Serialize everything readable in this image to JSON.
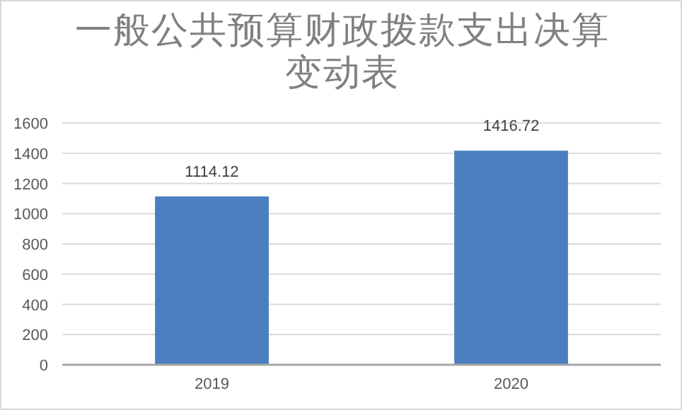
{
  "chart_data": {
    "type": "bar",
    "title": "一般公共预算财政拨款支出决算变动表",
    "categories": [
      "2019",
      "2020"
    ],
    "values": [
      1114.12,
      1416.72
    ],
    "color": "#4a7ebf",
    "ylim": [
      0,
      1600
    ],
    "yticks": [
      0,
      200,
      400,
      600,
      800,
      1000,
      1200,
      1400,
      1600
    ],
    "grid": "y",
    "data_labels": true
  }
}
